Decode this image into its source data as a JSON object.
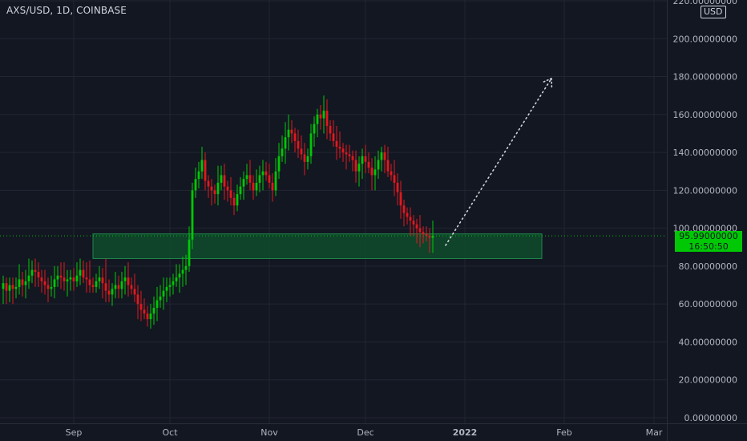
{
  "header": {
    "symbol_title": "AXS/USD, 1D, COINBASE",
    "currency": "USD"
  },
  "price_tag": {
    "price": "95.99000000",
    "countdown": "16:50:50"
  },
  "colors": {
    "background": "#131722",
    "grid": "#232632",
    "up_candle": "#00c805",
    "down_candle": "#e0191f",
    "axis_text": "#b2b5be",
    "zone_fill": "#0f4b2c",
    "zone_border": "#1f8a4c",
    "price_line": "#00c805",
    "projection": "#d1d4dc"
  },
  "chart_data": {
    "type": "candlestick",
    "title": "AXS/USD, 1D, COINBASE",
    "ylabel": "USD",
    "ylim": [
      0,
      220
    ],
    "y_ticks": [
      0,
      20,
      40,
      60,
      80,
      100,
      120,
      140,
      160,
      180,
      200,
      220
    ],
    "y_tick_labels": [
      "0.00000000",
      "20.00000000",
      "40.00000000",
      "60.00000000",
      "80.00000000",
      "100.00000000",
      "120.00000000",
      "140.00000000",
      "160.00000000",
      "180.00000000",
      "200.00000000",
      "220.00000000"
    ],
    "x_ticks": [
      {
        "label": "Sep",
        "date": "2021-09-01"
      },
      {
        "label": "Oct",
        "date": "2021-10-01"
      },
      {
        "label": "Nov",
        "date": "2021-11-01"
      },
      {
        "label": "Dec",
        "date": "2021-12-01"
      },
      {
        "label": "2022",
        "date": "2022-01-01"
      },
      {
        "label": "Feb",
        "date": "2022-02-01"
      },
      {
        "label": "Mar",
        "date": "2022-03-01"
      }
    ],
    "xlim": [
      "2021-08-09",
      "2022-03-05"
    ],
    "grid": true,
    "last_price": 95.99,
    "close_series": {
      "start_date": "2021-08-10",
      "closes": [
        71,
        67,
        70,
        68,
        69,
        73,
        70,
        72,
        75,
        78,
        77,
        74,
        72,
        70,
        68,
        69,
        73,
        75,
        74,
        72,
        73,
        74,
        72,
        75,
        78,
        74,
        73,
        70,
        69,
        72,
        74,
        71,
        67,
        65,
        68,
        70,
        68,
        72,
        74,
        70,
        68,
        65,
        60,
        57,
        55,
        52,
        55,
        58,
        62,
        64,
        67,
        69,
        70,
        72,
        74,
        76,
        78,
        80,
        94,
        120,
        126,
        130,
        136,
        125,
        122,
        120,
        118,
        124,
        128,
        122,
        120,
        116,
        112,
        118,
        122,
        126,
        128,
        124,
        120,
        124,
        128,
        130,
        128,
        124,
        120,
        130,
        138,
        142,
        148,
        152,
        150,
        146,
        142,
        139,
        135,
        138,
        150,
        155,
        160,
        158,
        162,
        154,
        150,
        146,
        143,
        142,
        140,
        139,
        138,
        136,
        130,
        134,
        138,
        135,
        132,
        128,
        131,
        136,
        140,
        136,
        130,
        128,
        124,
        119,
        112,
        108,
        106,
        104,
        102,
        100,
        98,
        97,
        96,
        95,
        96
      ],
      "deltas": [
        [
          4,
          8
        ],
        [
          3,
          7
        ],
        [
          4,
          6
        ],
        [
          4,
          8
        ],
        [
          5,
          5
        ],
        [
          8,
          4
        ],
        [
          4,
          6
        ],
        [
          6,
          7
        ],
        [
          9,
          4
        ],
        [
          5,
          4
        ],
        [
          6,
          8
        ],
        [
          5,
          5
        ],
        [
          4,
          6
        ],
        [
          6,
          5
        ],
        [
          4,
          7
        ],
        [
          6,
          4
        ],
        [
          7,
          6
        ],
        [
          5,
          4
        ],
        [
          7,
          6
        ],
        [
          8,
          5
        ],
        [
          5,
          8
        ],
        [
          4,
          6
        ],
        [
          5,
          5
        ],
        [
          7,
          3
        ],
        [
          6,
          5
        ],
        [
          5,
          3
        ],
        [
          8,
          7
        ],
        [
          10,
          4
        ],
        [
          4,
          3
        ],
        [
          4,
          3
        ],
        [
          6,
          4
        ],
        [
          5,
          8
        ],
        [
          13,
          6
        ],
        [
          6,
          4
        ],
        [
          3,
          6
        ],
        [
          7,
          5
        ],
        [
          5,
          5
        ],
        [
          5,
          5
        ],
        [
          6,
          7
        ],
        [
          8,
          6
        ],
        [
          4,
          3
        ],
        [
          8,
          4
        ],
        [
          5,
          8
        ],
        [
          7,
          6
        ],
        [
          6,
          3
        ],
        [
          4,
          4
        ],
        [
          5,
          5
        ],
        [
          6,
          6
        ],
        [
          7,
          7
        ],
        [
          6,
          4
        ],
        [
          7,
          7
        ],
        [
          5,
          6
        ],
        [
          4,
          5
        ],
        [
          4,
          5
        ],
        [
          7,
          3
        ],
        [
          5,
          8
        ],
        [
          7,
          7
        ],
        [
          6,
          8
        ],
        [
          7,
          3
        ],
        [
          4,
          5
        ],
        [
          6,
          4
        ],
        [
          5,
          5
        ],
        [
          7,
          4
        ],
        [
          4,
          5
        ],
        [
          3,
          6
        ],
        [
          4,
          8
        ],
        [
          3,
          5
        ],
        [
          9,
          6
        ],
        [
          5,
          4
        ],
        [
          6,
          7
        ],
        [
          3,
          6
        ],
        [
          7,
          4
        ],
        [
          3,
          5
        ],
        [
          5,
          3
        ],
        [
          5,
          3
        ],
        [
          4,
          7
        ],
        [
          6,
          3
        ],
        [
          8,
          4
        ],
        [
          4,
          5
        ],
        [
          7,
          3
        ],
        [
          5,
          5
        ],
        [
          6,
          8
        ],
        [
          5,
          3
        ],
        [
          6,
          3
        ],
        [
          5,
          6
        ],
        [
          7,
          3
        ],
        [
          7,
          4
        ],
        [
          7,
          3
        ],
        [
          8,
          8
        ],
        [
          8,
          7
        ],
        [
          5,
          5
        ],
        [
          3,
          6
        ],
        [
          6,
          5
        ],
        [
          7,
          3
        ],
        [
          6,
          7
        ],
        [
          4,
          4
        ],
        [
          5,
          4
        ],
        [
          4,
          7
        ],
        [
          3,
          7
        ],
        [
          5,
          6
        ],
        [
          8,
          8
        ],
        [
          6,
          7
        ],
        [
          3,
          4
        ],
        [
          7,
          3
        ],
        [
          8,
          7
        ],
        [
          8,
          5
        ],
        [
          3,
          5
        ],
        [
          4,
          8
        ],
        [
          5,
          3
        ],
        [
          3,
          6
        ],
        [
          5,
          6
        ],
        [
          4,
          8
        ],
        [
          4,
          8
        ],
        [
          6,
          6
        ],
        [
          5,
          3
        ],
        [
          5,
          8
        ],
        [
          7,
          8
        ],
        [
          5,
          5
        ],
        [
          3,
          6
        ],
        [
          4,
          7
        ],
        [
          7,
          3
        ],
        [
          4,
          3
        ],
        [
          8,
          7
        ],
        [
          5,
          7
        ],
        [
          6,
          7
        ],
        [
          3,
          7
        ],
        [
          3,
          4
        ],
        [
          5,
          8
        ],
        [
          3,
          6
        ],
        [
          3,
          8
        ],
        [
          7,
          8
        ],
        [
          3,
          5
        ],
        [
          4,
          3
        ],
        [
          4,
          8
        ],
        [
          8,
          8
        ]
      ]
    },
    "annotations": {
      "support_zone": {
        "from": "2021-09-07",
        "to": "2022-01-25",
        "low": 84,
        "high": 97
      },
      "projection_arrow": {
        "from_date": "2021-12-26",
        "from_price": 91,
        "to_date": "2022-01-28",
        "to_price": 179
      }
    }
  }
}
